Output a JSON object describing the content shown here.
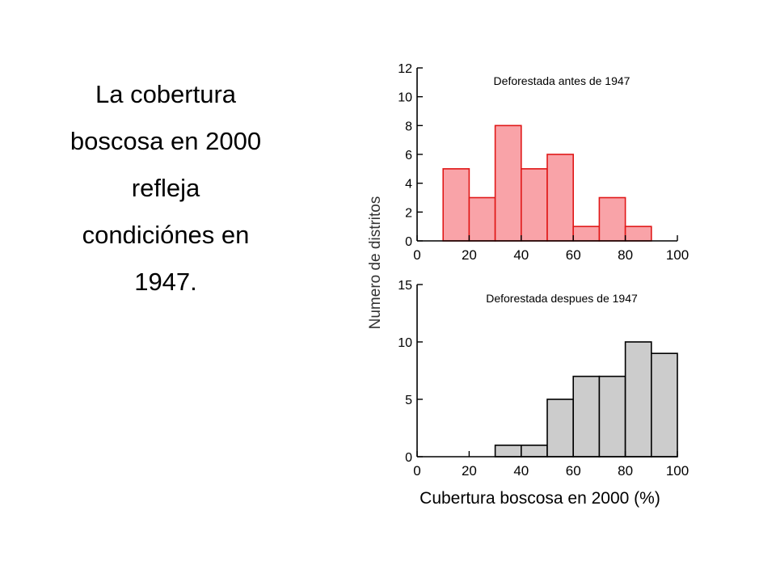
{
  "slide": {
    "lines": [
      "La cobertura",
      "boscosa en 2000",
      "refleja",
      "condiciónes en",
      "1947."
    ]
  },
  "shared_ylabel": "Numero de distritos",
  "shared_xlabel": "Cubertura boscosa en 2000 (%)",
  "colors": {
    "top_fill": "#f9a3a8",
    "top_edge": "#e01818",
    "bottom_fill": "#cccccc",
    "bottom_edge": "#000000"
  },
  "chart_data": [
    {
      "type": "bar",
      "title": "Deforestada antes de 1947",
      "bins": [
        [
          10,
          20
        ],
        [
          20,
          30
        ],
        [
          30,
          40
        ],
        [
          40,
          50
        ],
        [
          50,
          60
        ],
        [
          60,
          70
        ],
        [
          70,
          80
        ],
        [
          80,
          90
        ]
      ],
      "values": [
        5,
        3,
        8,
        5,
        6,
        1,
        3,
        1
      ],
      "xlim": [
        0,
        100
      ],
      "ylim": [
        0,
        12
      ],
      "xticks": [
        0,
        20,
        40,
        60,
        80,
        100
      ],
      "yticks": [
        0,
        2,
        4,
        6,
        8,
        10,
        12
      ]
    },
    {
      "type": "bar",
      "title": "Deforestada despues de 1947",
      "bins": [
        [
          30,
          40
        ],
        [
          40,
          50
        ],
        [
          50,
          60
        ],
        [
          60,
          70
        ],
        [
          70,
          80
        ],
        [
          80,
          90
        ],
        [
          90,
          100
        ]
      ],
      "values": [
        1,
        1,
        5,
        7,
        7,
        10,
        9
      ],
      "xlim": [
        0,
        100
      ],
      "ylim": [
        0,
        15
      ],
      "xticks": [
        0,
        20,
        40,
        60,
        80,
        100
      ],
      "yticks": [
        0,
        5,
        10,
        15
      ]
    }
  ]
}
